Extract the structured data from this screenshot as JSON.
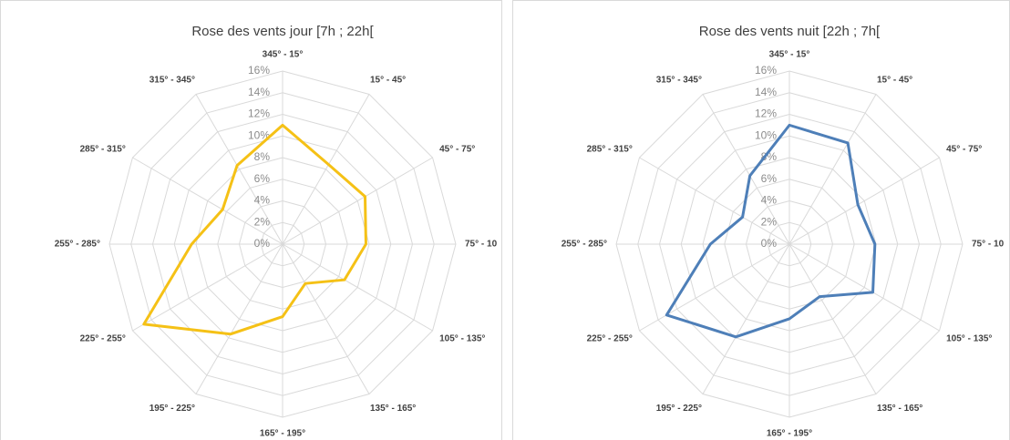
{
  "chart_data": [
    {
      "type": "radar",
      "title": "Rose des vents jour [7h ; 22h[",
      "categories": [
        "345° - 15°",
        "15° - 45°",
        "45° - 75°",
        "75° - 10",
        "105° - 135°",
        "135° - 165°",
        "165° - 195°",
        "195° - 225°",
        "225° - 255°",
        "255° - 285°",
        "285° - 315°",
        "315° - 345°"
      ],
      "values": [
        11.0,
        8.5,
        8.8,
        7.7,
        6.6,
        4.2,
        6.7,
        9.6,
        14.8,
        8.4,
        6.4,
        8.4
      ],
      "color": "#f5c116",
      "ylim": [
        0,
        16
      ],
      "yticks": [
        {
          "value": 0,
          "label": "0%"
        },
        {
          "value": 2,
          "label": "2%"
        },
        {
          "value": 4,
          "label": "4%"
        },
        {
          "value": 6,
          "label": "6%"
        },
        {
          "value": 8,
          "label": "8%"
        },
        {
          "value": 10,
          "label": "10%"
        },
        {
          "value": 12,
          "label": "12%"
        },
        {
          "value": 14,
          "label": "14%"
        },
        {
          "value": 16,
          "label": "16%"
        }
      ],
      "grid": true
    },
    {
      "type": "radar",
      "title": "Rose des vents nuit [22h ; 7h[",
      "categories": [
        "345° - 15°",
        "15° - 45°",
        "45° - 75°",
        "75° - 10",
        "105° - 135°",
        "135° - 165°",
        "165° - 195°",
        "195° - 225°",
        "225° - 255°",
        "255° - 285°",
        "285° - 315°",
        "315° - 345°"
      ],
      "values": [
        11.0,
        10.8,
        7.3,
        7.9,
        8.9,
        5.6,
        6.9,
        9.9,
        13.1,
        7.3,
        5.0,
        7.3
      ],
      "color": "#4e7fb8",
      "ylim": [
        0,
        16
      ],
      "yticks": [
        {
          "value": 0,
          "label": "0%"
        },
        {
          "value": 2,
          "label": "2%"
        },
        {
          "value": 4,
          "label": "4%"
        },
        {
          "value": 6,
          "label": "6%"
        },
        {
          "value": 8,
          "label": "8%"
        },
        {
          "value": 10,
          "label": "10%"
        },
        {
          "value": 12,
          "label": "12%"
        },
        {
          "value": 14,
          "label": "14%"
        },
        {
          "value": 16,
          "label": "16%"
        }
      ],
      "grid": true
    }
  ]
}
